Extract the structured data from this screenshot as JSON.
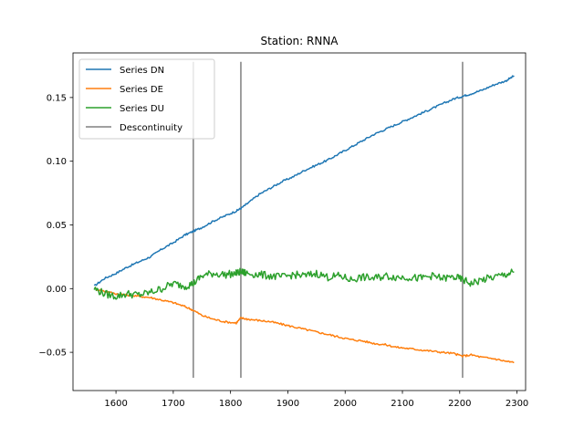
{
  "chart_data": {
    "type": "line",
    "title": "Station: RNNA",
    "xlabel": "",
    "ylabel": "",
    "xlim": [
      1525,
      2315
    ],
    "ylim": [
      -0.08,
      0.185
    ],
    "x_ticks": [
      1600,
      1700,
      1800,
      1900,
      2000,
      2100,
      2200,
      2300
    ],
    "y_ticks": [
      -0.05,
      0.0,
      0.05,
      0.1,
      0.15
    ],
    "y_tick_labels": [
      "−0.05",
      "0.00",
      "0.05",
      "0.10",
      "0.15"
    ],
    "grid": false,
    "legend_placement": "top-left",
    "series": [
      {
        "name": "Series DN",
        "color": "#1f77b4",
        "x": [
          1562,
          1580,
          1600,
          1620,
          1640,
          1660,
          1680,
          1700,
          1720,
          1735,
          1750,
          1770,
          1790,
          1810,
          1818,
          1830,
          1850,
          1870,
          1890,
          1910,
          1930,
          1950,
          1970,
          1990,
          2010,
          2030,
          2050,
          2070,
          2090,
          2110,
          2130,
          2150,
          2170,
          2190,
          2205,
          2220,
          2240,
          2260,
          2280,
          2295
        ],
        "y": [
          0.002,
          0.008,
          0.012,
          0.017,
          0.021,
          0.025,
          0.031,
          0.036,
          0.042,
          0.045,
          0.048,
          0.053,
          0.057,
          0.061,
          0.063,
          0.067,
          0.074,
          0.079,
          0.084,
          0.088,
          0.093,
          0.097,
          0.101,
          0.106,
          0.111,
          0.116,
          0.121,
          0.125,
          0.129,
          0.133,
          0.137,
          0.141,
          0.145,
          0.149,
          0.151,
          0.153,
          0.156,
          0.16,
          0.163,
          0.167
        ]
      },
      {
        "name": "Series DE",
        "color": "#ff7f0e",
        "x": [
          1562,
          1580,
          1600,
          1620,
          1640,
          1660,
          1680,
          1700,
          1720,
          1735,
          1750,
          1770,
          1790,
          1810,
          1818,
          1830,
          1850,
          1870,
          1890,
          1910,
          1930,
          1950,
          1970,
          1990,
          2010,
          2030,
          2050,
          2070,
          2090,
          2110,
          2130,
          2150,
          2170,
          2190,
          2205,
          2220,
          2240,
          2260,
          2280,
          2295
        ],
        "y": [
          0.0,
          -0.002,
          -0.004,
          -0.005,
          -0.006,
          -0.007,
          -0.009,
          -0.011,
          -0.014,
          -0.017,
          -0.021,
          -0.024,
          -0.026,
          -0.027,
          -0.023,
          -0.024,
          -0.025,
          -0.026,
          -0.028,
          -0.03,
          -0.032,
          -0.034,
          -0.036,
          -0.038,
          -0.04,
          -0.041,
          -0.043,
          -0.044,
          -0.046,
          -0.047,
          -0.048,
          -0.049,
          -0.05,
          -0.051,
          -0.053,
          -0.052,
          -0.054,
          -0.055,
          -0.057,
          -0.058
        ]
      },
      {
        "name": "Series DU",
        "color": "#2ca02c",
        "x": [
          1562,
          1580,
          1600,
          1620,
          1640,
          1660,
          1680,
          1700,
          1720,
          1735,
          1750,
          1770,
          1790,
          1810,
          1818,
          1830,
          1850,
          1870,
          1890,
          1910,
          1930,
          1950,
          1970,
          1990,
          2010,
          2030,
          2050,
          2070,
          2090,
          2110,
          2130,
          2150,
          2170,
          2190,
          2205,
          2220,
          2240,
          2260,
          2280,
          2295
        ],
        "y": [
          0.0,
          -0.004,
          -0.006,
          -0.004,
          -0.005,
          -0.003,
          0.0,
          0.004,
          0.002,
          0.004,
          0.01,
          0.012,
          0.011,
          0.012,
          0.013,
          0.012,
          0.011,
          0.01,
          0.009,
          0.011,
          0.01,
          0.012,
          0.009,
          0.01,
          0.007,
          0.009,
          0.008,
          0.01,
          0.009,
          0.009,
          0.008,
          0.01,
          0.008,
          0.009,
          0.007,
          0.004,
          0.007,
          0.009,
          0.011,
          0.013
        ]
      }
    ],
    "discontinuities": {
      "name": "Descontinuity",
      "color": "#808080",
      "x": [
        1735,
        1818,
        2205
      ],
      "y_range": [
        -0.07,
        0.178
      ]
    }
  }
}
